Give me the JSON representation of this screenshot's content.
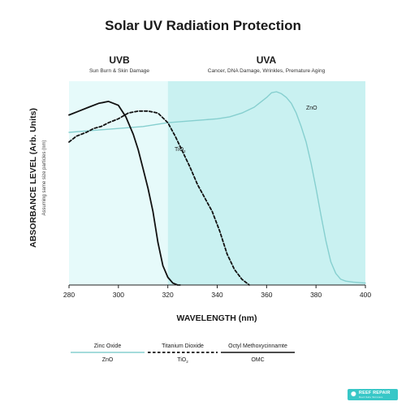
{
  "title": "Solar UV Radiation Protection",
  "regions": {
    "uvb": {
      "label": "UVB",
      "description": "Sun Burn & Skin Damage"
    },
    "uva": {
      "label": "UVA",
      "description": "Cancer, DNA Damage, Wrinkles, Premature Aging"
    }
  },
  "colors": {
    "uvb_band": "#e6fafa",
    "uva_band": "#c9f1f1",
    "zinc_oxide": "#86cfcf",
    "titanium_dioxide": "#111111",
    "omc": "#111111",
    "brand": "#38c7c7"
  },
  "chart_data": {
    "type": "line",
    "title": "Solar UV Radiation Protection",
    "xlabel": "WAVELENGTH (nm)",
    "ylabel": "ABSORBANCE LEVEL (Arb. Units)",
    "ylabel_note": "Assuming same size particles (nm)",
    "xlim": [
      280,
      400
    ],
    "ylim": [
      0,
      1
    ],
    "xticks": [
      280,
      300,
      320,
      340,
      360,
      380,
      400
    ],
    "bands": [
      {
        "name": "UVB",
        "from": 280,
        "to": 320
      },
      {
        "name": "UVA",
        "from": 320,
        "to": 400
      }
    ],
    "series": [
      {
        "name": "Zinc Oxide",
        "label": "ZnO",
        "style": "solid",
        "x": [
          280,
          290,
          300,
          310,
          320,
          330,
          340,
          345,
          350,
          355,
          360,
          362,
          364,
          366,
          368,
          370,
          372,
          374,
          376,
          378,
          380,
          382,
          384,
          386,
          388,
          390,
          392,
          395,
          400
        ],
        "y": [
          0.79,
          0.8,
          0.81,
          0.82,
          0.84,
          0.85,
          0.86,
          0.87,
          0.89,
          0.92,
          0.97,
          0.995,
          1.0,
          0.99,
          0.97,
          0.94,
          0.89,
          0.82,
          0.74,
          0.63,
          0.5,
          0.36,
          0.23,
          0.12,
          0.06,
          0.03,
          0.02,
          0.015,
          0.01
        ]
      },
      {
        "name": "Titanium Dioxide",
        "label": "TiO2",
        "style": "dashed",
        "x": [
          280,
          283,
          287,
          290,
          293,
          296,
          300,
          304,
          308,
          312,
          316,
          320,
          323,
          326,
          329,
          332,
          335,
          338,
          341,
          344,
          347,
          350,
          353
        ],
        "y": [
          0.74,
          0.77,
          0.79,
          0.81,
          0.82,
          0.84,
          0.86,
          0.89,
          0.9,
          0.9,
          0.89,
          0.84,
          0.77,
          0.69,
          0.61,
          0.52,
          0.45,
          0.38,
          0.28,
          0.16,
          0.08,
          0.03,
          0.0
        ]
      },
      {
        "name": "Octyl Methoxycinnamate",
        "label": "OMC",
        "style": "solid",
        "x": [
          280,
          284,
          288,
          292,
          296,
          300,
          303,
          306,
          308,
          310,
          312,
          314,
          316,
          318,
          320,
          322,
          324,
          325
        ],
        "y": [
          0.88,
          0.9,
          0.92,
          0.94,
          0.95,
          0.93,
          0.87,
          0.78,
          0.7,
          0.6,
          0.5,
          0.38,
          0.22,
          0.1,
          0.04,
          0.01,
          0.0,
          0.0
        ]
      }
    ],
    "legend": [
      {
        "name": "Zinc Oxide",
        "abbr": "ZnO",
        "style": "solid"
      },
      {
        "name": "Titanium Dioxide",
        "abbr": "TiO2",
        "style": "dashed"
      },
      {
        "name": "Octyl Methoxycinnamte",
        "abbr": "OMC",
        "style": "solid"
      }
    ]
  },
  "brand": {
    "name": "REEF REPAIR",
    "tagline": "Reef-Safe Skincare"
  }
}
